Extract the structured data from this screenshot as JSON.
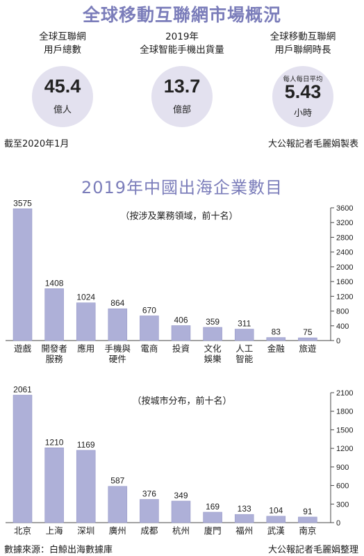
{
  "header": {
    "title": "全球移動互聯網市場概況"
  },
  "stats": [
    {
      "label": [
        "全球互聯網",
        "用戶總數"
      ],
      "value": "45.4",
      "unit": "億人",
      "prefix": ""
    },
    {
      "label": [
        "2019年",
        "全球智能手機出貨量"
      ],
      "value": "13.7",
      "unit": "億部",
      "prefix": ""
    },
    {
      "label": [
        "全球移動互聯網",
        "用戶聯網時長"
      ],
      "value": "5.43",
      "unit": "小時",
      "prefix": "每人每日平均"
    }
  ],
  "top_footer": {
    "left": "截至2020年1月",
    "right": "大公報記者毛麗娟製表"
  },
  "section_title": "2019年中國出海企業數目",
  "chart_data": [
    {
      "type": "bar",
      "subtitle": "（按涉及業務領域，前十名）",
      "categories": [
        [
          "遊戲"
        ],
        [
          "開發者",
          "服務"
        ],
        [
          "應用"
        ],
        [
          "手機與",
          "硬件"
        ],
        [
          "電商"
        ],
        [
          "投資"
        ],
        [
          "文化",
          "娛樂"
        ],
        [
          "人工",
          "智能"
        ],
        [
          "金融"
        ],
        [
          "旅遊"
        ]
      ],
      "values": [
        3575,
        1408,
        1024,
        864,
        670,
        406,
        359,
        311,
        83,
        75
      ],
      "ylim": [
        0,
        3600
      ],
      "yticks": [
        0,
        400,
        800,
        1200,
        1600,
        2000,
        2400,
        2800,
        3200,
        3600
      ],
      "axis_side": "right",
      "bar_color": "#aeb0d8"
    },
    {
      "type": "bar",
      "subtitle": "（按城市分布，前十名）",
      "categories": [
        [
          "北京"
        ],
        [
          "上海"
        ],
        [
          "深圳"
        ],
        [
          "廣州"
        ],
        [
          "成都"
        ],
        [
          "杭州"
        ],
        [
          "廈門"
        ],
        [
          "福州"
        ],
        [
          "武漢"
        ],
        [
          "南京"
        ]
      ],
      "values": [
        2061,
        1210,
        1169,
        587,
        376,
        349,
        169,
        133,
        104,
        91
      ],
      "ylim": [
        0,
        2100
      ],
      "yticks": [
        0,
        300,
        600,
        900,
        1200,
        1500,
        1800,
        2100
      ],
      "axis_side": "right",
      "bar_color": "#aeb0d8"
    }
  ],
  "bottom_footer": {
    "left": "數據來源：白鯨出海數據庫",
    "right": "大公報記者毛麗娟整理"
  }
}
